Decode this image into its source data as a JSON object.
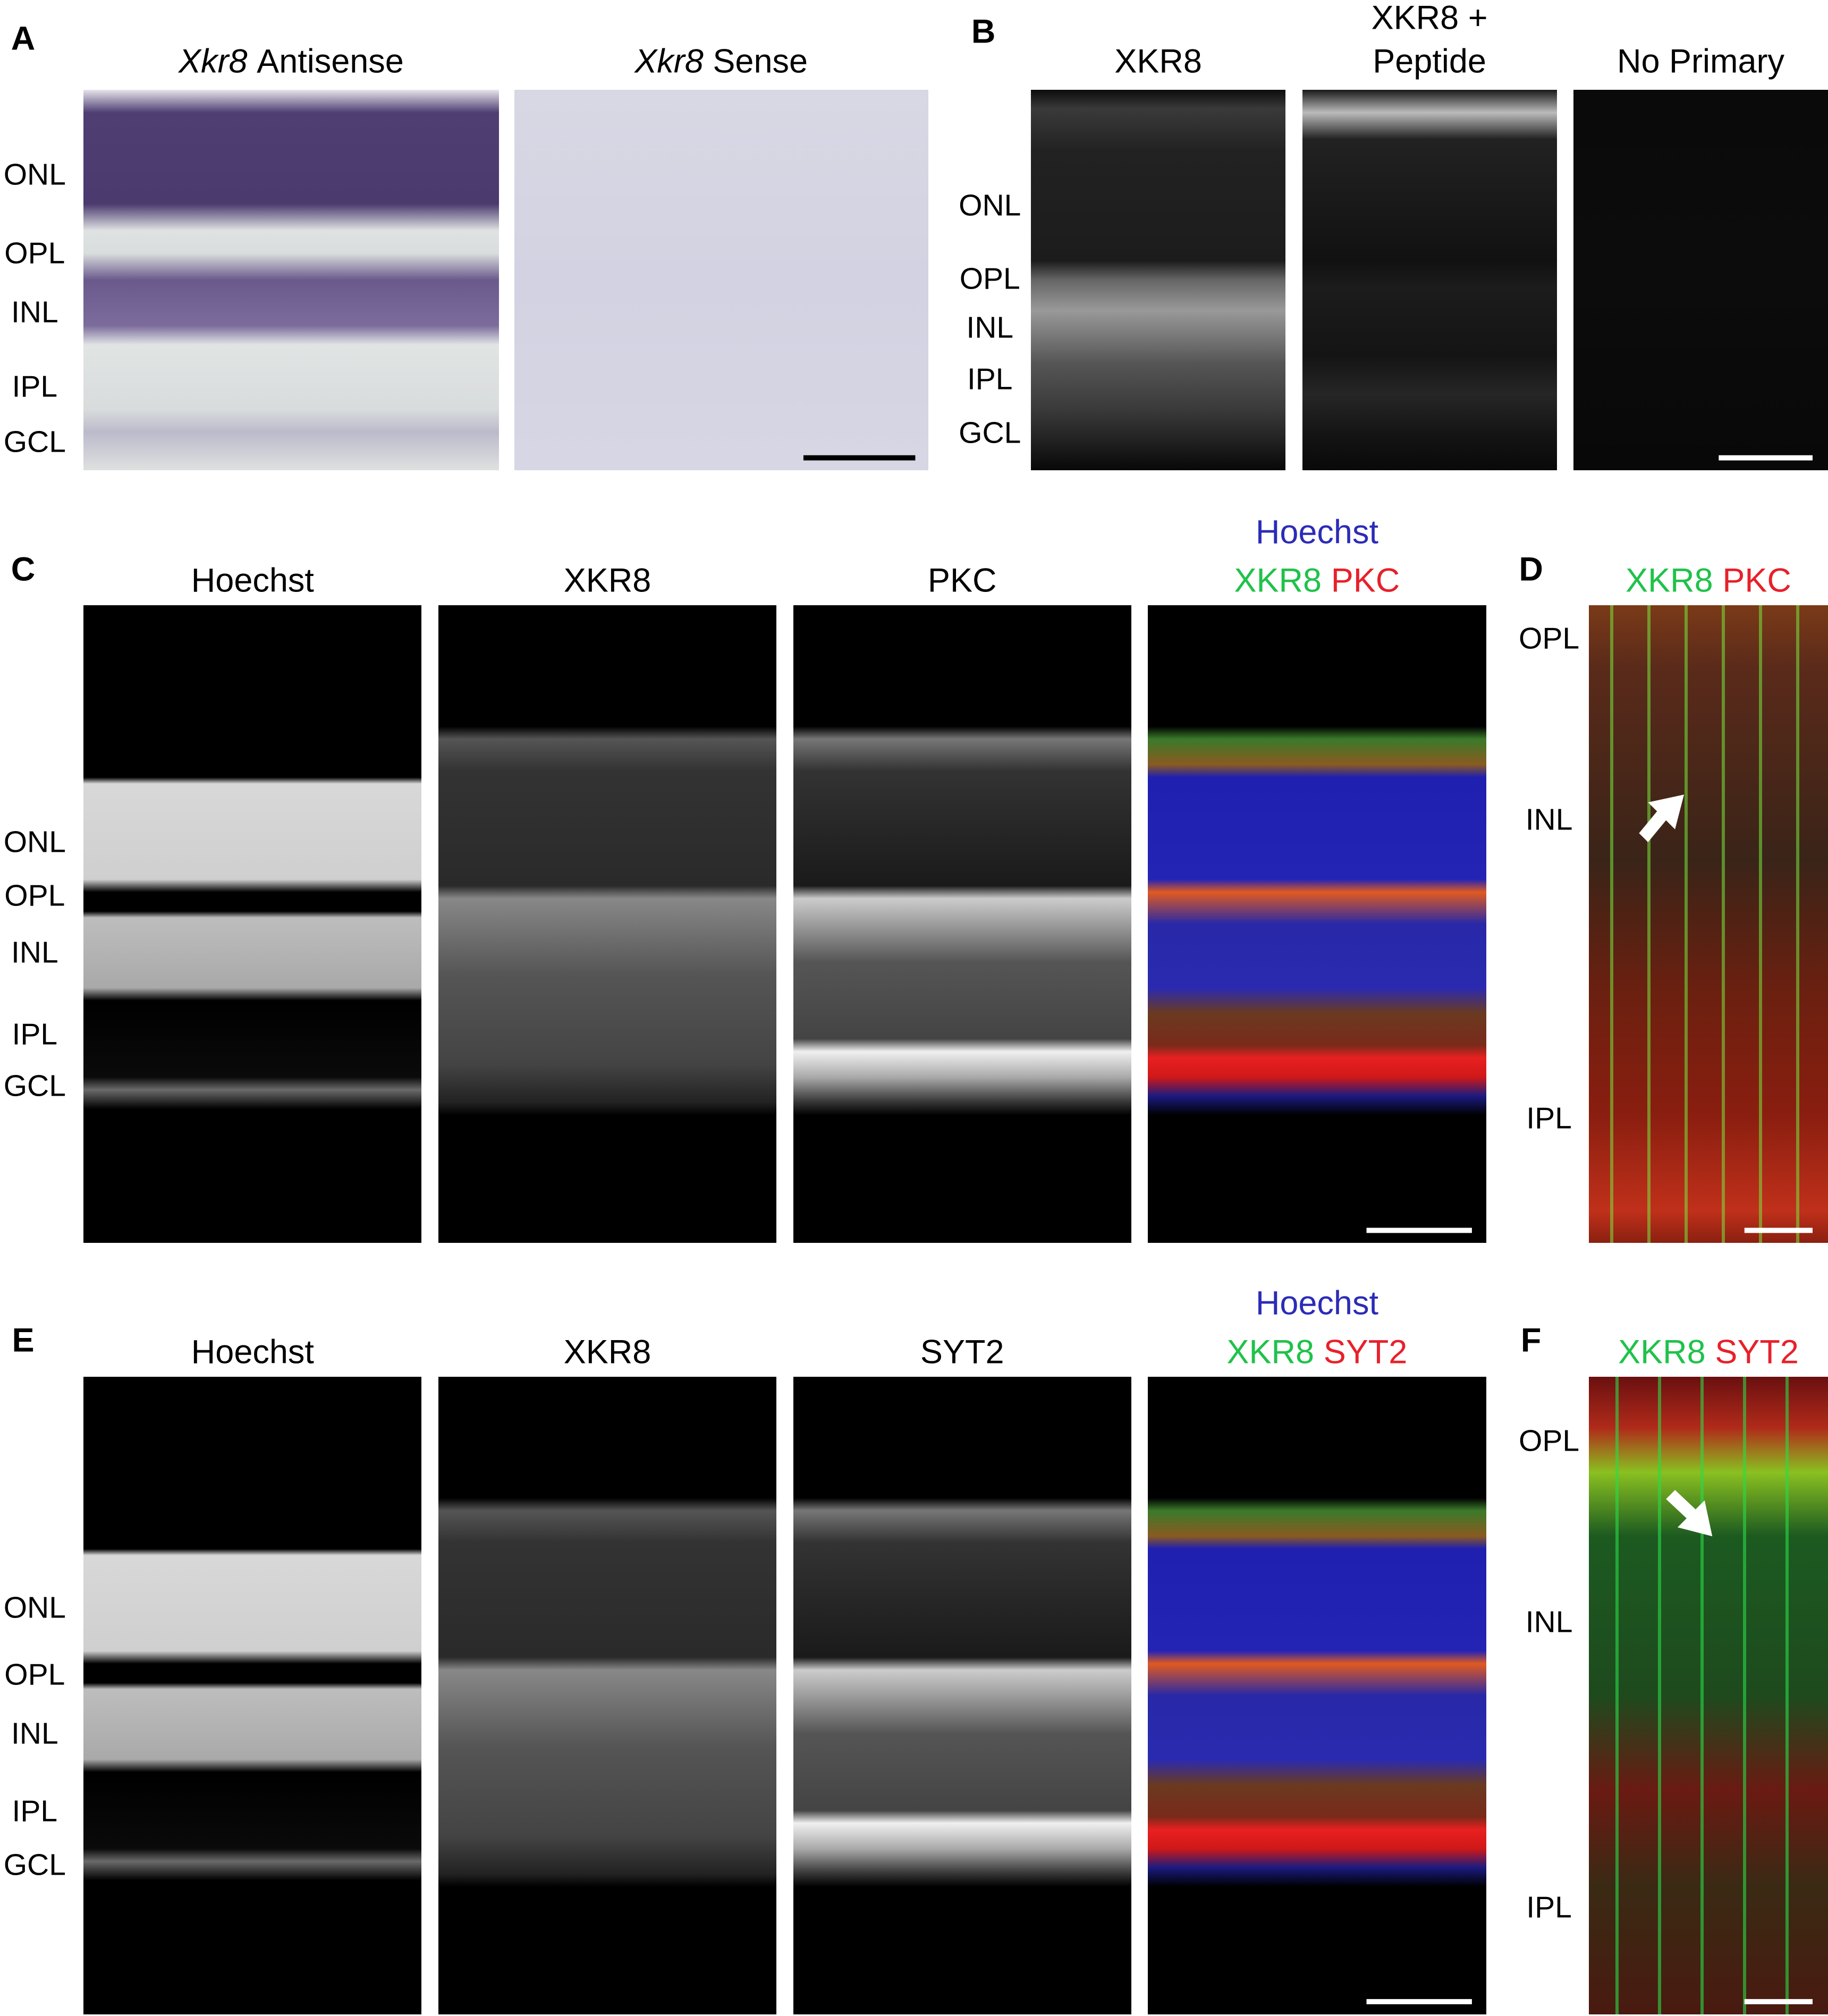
{
  "panel_a": {
    "letter": "A",
    "gene": "Xkr8",
    "images": [
      "Antisense",
      "Sense"
    ],
    "layers": [
      "ONL",
      "OPL",
      "INL",
      "IPL",
      "GCL"
    ]
  },
  "panel_b": {
    "letter": "B",
    "images": [
      [
        "XKR8"
      ],
      [
        "XKR8 +",
        "Peptide"
      ],
      [
        "No Primary"
      ]
    ],
    "layers": [
      "ONL",
      "OPL",
      "INL",
      "IPL",
      "GCL"
    ]
  },
  "panel_c": {
    "letter": "C",
    "images": [
      "Hoechst",
      "XKR8",
      "PKC"
    ],
    "merge": {
      "blue": "Hoechst",
      "green": "XKR8",
      "red": "PKC"
    },
    "layers": [
      "ONL",
      "OPL",
      "INL",
      "IPL",
      "GCL"
    ]
  },
  "panel_d": {
    "letter": "D",
    "green": "XKR8",
    "red": "PKC",
    "layers": [
      "OPL",
      "INL",
      "IPL"
    ]
  },
  "panel_e": {
    "letter": "E",
    "images": [
      "Hoechst",
      "XKR8",
      "SYT2"
    ],
    "merge": {
      "blue": "Hoechst",
      "green": "XKR8",
      "red": "SYT2"
    },
    "layers": [
      "ONL",
      "OPL",
      "INL",
      "IPL",
      "GCL"
    ]
  },
  "panel_f": {
    "letter": "F",
    "green": "XKR8",
    "red": "SYT2",
    "layers": [
      "OPL",
      "INL",
      "IPL"
    ]
  }
}
